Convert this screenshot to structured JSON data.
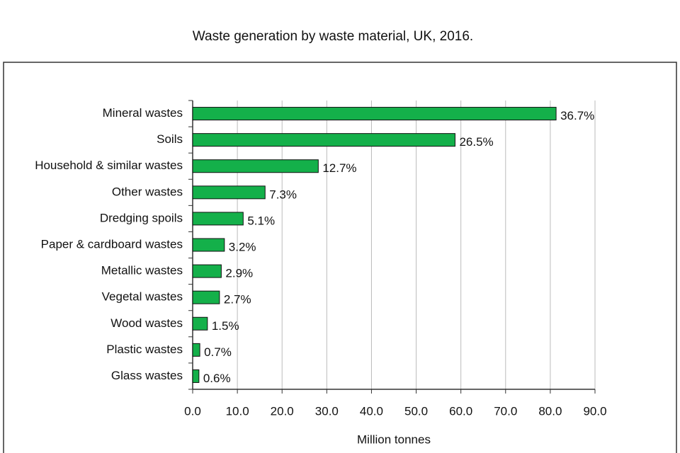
{
  "chart_data": {
    "type": "bar",
    "orientation": "horizontal",
    "title": "Waste generation by waste material, UK, 2016.",
    "x_label": "Million tonnes",
    "categories": [
      "Mineral wastes",
      "Soils",
      "Household & similar wastes",
      "Other wastes",
      "Dredging spoils",
      "Paper & cardboard wastes",
      "Metallic wastes",
      "Vegetal wastes",
      "Wood wastes",
      "Plastic wastes",
      "Glass wastes"
    ],
    "values": [
      81.3,
      58.7,
      28.1,
      16.2,
      11.3,
      7.1,
      6.4,
      6.0,
      3.3,
      1.6,
      1.4
    ],
    "share_labels": [
      "36.7%",
      "26.5%",
      "12.7%",
      "7.3%",
      "5.1%",
      "3.2%",
      "2.9%",
      "2.7%",
      "1.5%",
      "0.7%",
      "0.6%"
    ],
    "color": "#14b04a",
    "xlim": [
      0,
      90
    ],
    "xticks": [
      {
        "value": 0,
        "label": "0.0"
      },
      {
        "value": 10,
        "label": "10.0"
      },
      {
        "value": 20,
        "label": "20.0"
      },
      {
        "value": 30,
        "label": "30.0"
      },
      {
        "value": 40,
        "label": "40.0"
      },
      {
        "value": 50,
        "label": "50.0"
      },
      {
        "value": 60,
        "label": "60.0"
      },
      {
        "value": 70,
        "label": "70.0"
      },
      {
        "value": 80,
        "label": "80.0"
      },
      {
        "value": 90,
        "label": "90.0"
      }
    ],
    "grid": true
  }
}
